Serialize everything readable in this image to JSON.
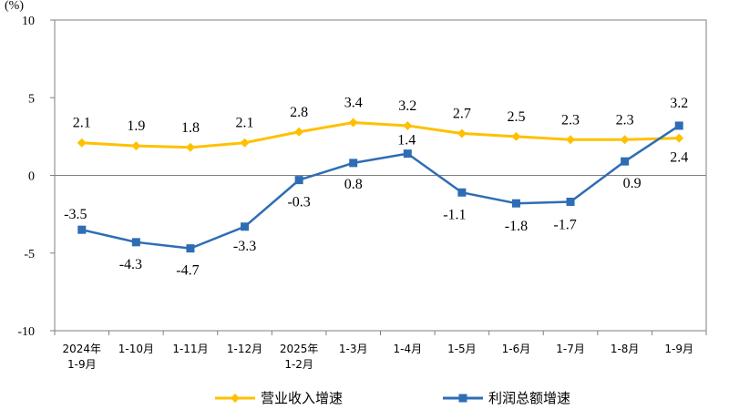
{
  "chart_data": {
    "type": "line",
    "unit_label": "(%)",
    "ylim": [
      -10,
      10
    ],
    "yticks": [
      10,
      5,
      0,
      -5,
      -10
    ],
    "ytick_labels": [
      "10",
      "5",
      "0",
      "-5",
      "-10"
    ],
    "categories": [
      [
        "2024年",
        "1-9月"
      ],
      [
        "1-10月"
      ],
      [
        "1-11月"
      ],
      [
        "1-12月"
      ],
      [
        "2025年",
        "1-2月"
      ],
      [
        "1-3月"
      ],
      [
        "1-4月"
      ],
      [
        "1-5月"
      ],
      [
        "1-6月"
      ],
      [
        "1-7月"
      ],
      [
        "1-8月"
      ],
      [
        "1-9月"
      ]
    ],
    "series": [
      {
        "name": "营业收入增速",
        "color": "#FFC000",
        "marker": "diamond",
        "values": [
          2.1,
          1.9,
          1.8,
          2.1,
          2.8,
          3.4,
          3.2,
          2.7,
          2.5,
          2.3,
          2.3,
          2.4
        ],
        "labels": [
          "2.1",
          "1.9",
          "1.8",
          "2.1",
          "2.8",
          "3.4",
          "3.2",
          "2.7",
          "2.5",
          "2.3",
          "2.3",
          "2.4"
        ]
      },
      {
        "name": "利润总额增速",
        "color": "#2E6DB4",
        "marker": "square",
        "values": [
          -3.5,
          -4.3,
          -4.7,
          -3.3,
          -0.3,
          0.8,
          1.4,
          -1.1,
          -1.8,
          -1.7,
          0.9,
          3.2
        ],
        "labels": [
          "-3.5",
          "-4.3",
          "-4.7",
          "-3.3",
          "-0.3",
          "0.8",
          "1.4",
          "-1.1",
          "-1.8",
          "-1.7",
          "0.9",
          "3.2"
        ]
      }
    ],
    "legend_position": "bottom-center"
  }
}
